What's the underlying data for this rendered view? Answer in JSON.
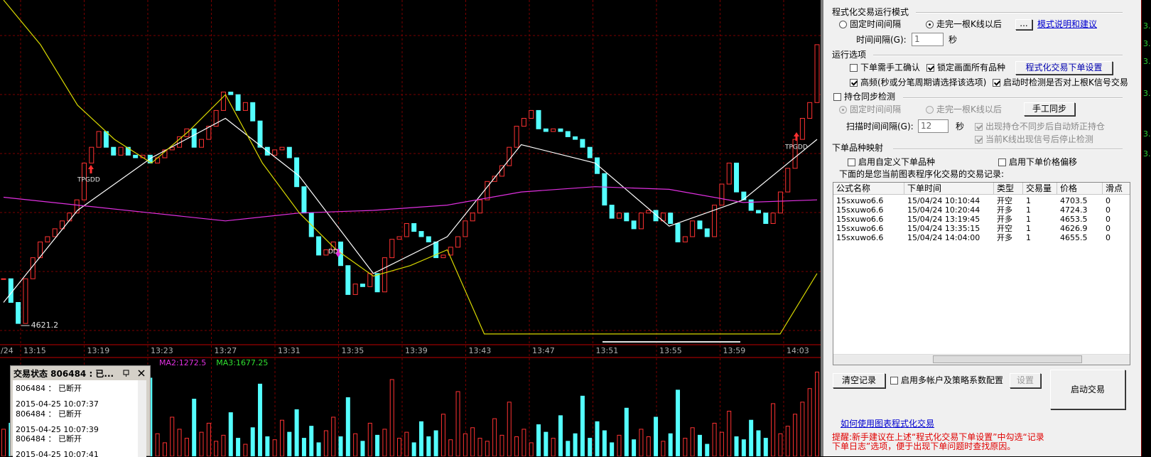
{
  "chart_data": {
    "type": "candlestick",
    "closes": [
      4639,
      4630,
      4622,
      4639,
      4647,
      4653,
      4655,
      4658,
      4661,
      4664,
      4669,
      4683,
      4689,
      4695,
      4689,
      4686,
      4689,
      4686,
      4685,
      4686,
      4683,
      4685,
      4688,
      4689,
      4693,
      4696,
      4689,
      4692,
      4697,
      4703,
      4710,
      4709,
      4703,
      4706,
      4699,
      4689,
      4686,
      4688,
      4689,
      4685,
      4674,
      4664,
      4655,
      4648,
      4650,
      4653,
      4644,
      4633,
      4637,
      4636,
      4641,
      4634,
      4647,
      4654,
      4655,
      4660,
      4657,
      4655,
      4653,
      4647,
      4648,
      4651,
      4655,
      4661,
      4664,
      4669,
      4676,
      4678,
      4682,
      4689,
      4697,
      4700,
      4703,
      4696,
      4695,
      4696,
      4695,
      4693,
      4692,
      4689,
      4685,
      4679,
      4667,
      4662,
      4664,
      4661,
      4658,
      4664,
      4665,
      4661,
      4664,
      4660,
      4653,
      4655,
      4661,
      4658,
      4655,
      4667,
      4675,
      4683,
      4672,
      4669,
      4665,
      4664,
      4660,
      4664,
      4672,
      4681,
      4692,
      4700,
      4706,
      4728
    ],
    "ylim": [
      4615,
      4745
    ],
    "up_color": "#ff3232",
    "down_color": "#54ffff",
    "low_label": 4621.2,
    "lines": [
      {
        "color": "#ffffff",
        "values": [
          4630,
          4665,
          4685,
          4700,
          4678,
          4641,
          4655,
          4690,
          4683,
          4659,
          4669,
          4692
        ]
      },
      {
        "color": "#e030e0",
        "values": [
          4670,
          4667,
          4664,
          4661,
          4664,
          4665,
          4667,
          4672,
          4674,
          4673,
          4668,
          4669
        ]
      },
      {
        "color": "#d8d800",
        "values": [
          4745,
          4728,
          4705,
          4692,
          4683,
          4695,
          4709,
          4683,
          4664,
          4650,
          4640,
          4644,
          4650,
          4618,
          4618,
          4618,
          4618,
          4618,
          4618,
          4618,
          4618,
          4618,
          4641
        ]
      }
    ],
    "signals": [
      "TPGDD",
      "DDK",
      "TPGDD"
    ],
    "time_labels": [
      "/24",
      "13:15",
      "13:19",
      "13:23",
      "13:27",
      "13:31",
      "13:35",
      "13:39",
      "13:43",
      "13:47",
      "13:51",
      "13:55",
      "13:59",
      "14:03"
    ],
    "volume": {
      "values": [
        1800,
        2200,
        900,
        1500,
        3000,
        1200,
        800,
        1600,
        2500,
        1100,
        4200,
        1300,
        2000,
        900,
        1700,
        1200,
        3500,
        1000,
        1400,
        2100,
        5200,
        1500,
        900,
        2600,
        1800,
        1200,
        3800,
        1600,
        2200,
        1000,
        1400,
        2900,
        1200,
        800,
        1900,
        4800,
        1300,
        1100,
        2400,
        1600,
        3100,
        1200,
        2000,
        900,
        1700,
        2600,
        1300,
        3900,
        1500,
        1000,
        2200,
        1400,
        1800,
        5100,
        1200,
        1600,
        900,
        2300,
        1300,
        1700,
        2800,
        1100,
        4300,
        1500,
        1900,
        1200,
        1000,
        2500,
        1400,
        3600,
        1300,
        1800,
        900,
        2100,
        1600,
        1200,
        2700,
        1000,
        1500,
        4000,
        1200,
        2300,
        1700,
        900,
        1400,
        3200,
        1100,
        1800,
        1300,
        2600,
        1000,
        1500,
        4400,
        1200,
        1900,
        1400,
        800,
        2200,
        1600,
        3000,
        1300,
        1100,
        2400,
        1700,
        1200,
        3500,
        1500,
        2000,
        2800,
        3600,
        4500,
        5600
      ],
      "ylim": [
        0,
        6000
      ],
      "ma_labels": [
        {
          "text": "MA2:1272.5",
          "color": "#e030e0"
        },
        {
          "text": "MA3:1677.25",
          "color": "#30e030"
        }
      ]
    }
  },
  "status_window": {
    "title": "交易状态 806484 : 已...",
    "entries": [
      "806484 ： 已断开",
      "2015-04-25 10:07:37",
      "806484 ： 已断开",
      "2015-04-25 10:07:39",
      "806484 ： 已断开",
      "2015-04-25 10:07:41"
    ]
  },
  "panel": {
    "mode": {
      "title": "程式化交易运行模式",
      "fixed": "固定时间间隔",
      "after_bar": "走完一根K线以后",
      "more_button": "...",
      "help_link": "模式说明和建议",
      "interval_label": "时间间隔(G):",
      "interval_value": "1",
      "unit": "秒"
    },
    "options": {
      "title": "运行选项",
      "manual_confirm": "下单需手工确认",
      "lock_symbols": "锁定画面所有品种",
      "order_settings_button": "程式化交易下单设置",
      "high_freq": "高频(秒或分笔周期请选择该选项)",
      "check_last_bar": "启动时检测是否对上根K信号交易"
    },
    "sync": {
      "title": "持仓同步检测",
      "fixed": "固定时间间隔",
      "after_bar": "走完一根K线以后",
      "sync_button": "手工同步",
      "scan_label": "扫描时间间隔(G):",
      "scan_value": "12",
      "unit": "秒",
      "auto_fix": "出现持仓不同步后自动矫正持仓",
      "stop_on_signal": "当前K线出现信号后停止检测"
    },
    "mapping": {
      "title": "下单品种映射",
      "custom_symbol": "启用自定义下单品种",
      "price_offset": "启用下单价格偏移"
    },
    "records": {
      "caption": "下面的是您当前图表程序化交易的交易记录:",
      "columns": [
        "公式名称",
        "下单时间",
        "类型",
        "交易量",
        "价格",
        "滑点"
      ],
      "rows": [
        [
          "15sxuwo6.6",
          "15/04/24 10:10:44",
          "开空",
          "1",
          "4703.5",
          "0"
        ],
        [
          "15sxuwo6.6",
          "15/04/24 10:20:44",
          "开多",
          "1",
          "4724.3",
          "0"
        ],
        [
          "15sxuwo6.6",
          "15/04/24 13:19:45",
          "开多",
          "1",
          "4653.5",
          "0"
        ],
        [
          "15sxuwo6.6",
          "15/04/24 13:35:15",
          "开空",
          "1",
          "4626.9",
          "0"
        ],
        [
          "15sxuwo6.6",
          "15/04/24 14:04:00",
          "开多",
          "1",
          "4655.5",
          "0"
        ]
      ]
    },
    "clear_button": "清空记录",
    "multi_account": "启用多帐户及策略系数配置",
    "settings_button": "设置",
    "start_button": "启动交易",
    "help_link": "如何使用图表程式化交易",
    "tip_lines": [
      "提醒:新手建议在上述“程式化交易下单设置”中勾选“记录",
      "下单日志”选项，便于出现下单问题时查找原因。"
    ]
  },
  "right_strip": [
    "3.",
    "3.",
    "3.",
    "3.",
    "3.",
    "3."
  ]
}
